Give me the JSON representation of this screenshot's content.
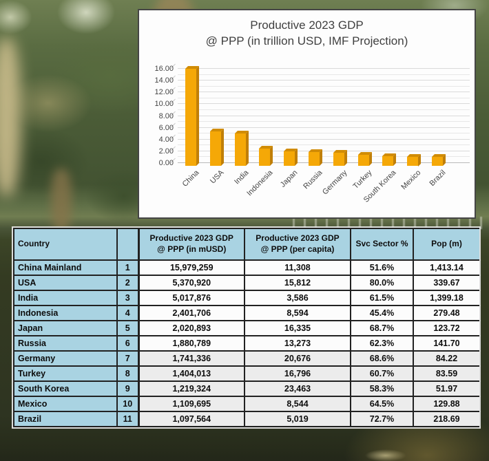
{
  "chart": {
    "title_line1": "Productive 2023 GDP",
    "title_line2": "@ PPP (in trillion USD, IMF Projection)",
    "y_ticks": [
      "0.00",
      "2.00",
      "4.00",
      "6.00",
      "8.00",
      "10.00",
      "12.00",
      "14.00",
      "16.00"
    ],
    "bar_front_color": "#f5a807",
    "bar_side_color": "#c07f08",
    "bar_top_color": "#d18c05"
  },
  "chart_data": [
    {
      "type": "bar",
      "title": "Productive 2023 GDP @ PPP (in trillion USD, IMF Projection)",
      "categories": [
        "China",
        "USA",
        "India",
        "Indonesia",
        "Japan",
        "Russia",
        "Germany",
        "Turkey",
        "South Korea",
        "Mexico",
        "Brazil"
      ],
      "values": [
        15.98,
        5.37,
        5.02,
        2.4,
        2.02,
        1.88,
        1.74,
        1.4,
        1.22,
        1.11,
        1.1
      ],
      "xlabel": "",
      "ylabel": "",
      "ylim": [
        0,
        16
      ],
      "y_tick_interval": 2,
      "gridline_interval": 1,
      "grid": true,
      "legend": false,
      "style": "3d-gold-bars"
    },
    {
      "type": "table",
      "columns": [
        "Country",
        "Rank",
        "Productive 2023 GDP @ PPP (in mUSD)",
        "Productive 2023 GDP @ PPP (per capita)",
        "Svc Sector %",
        "Pop (m)"
      ],
      "rows": [
        [
          "China Mainland",
          "1",
          "15,979,259",
          "11,308",
          "51.6%",
          "1,413.14"
        ],
        [
          "USA",
          "2",
          "5,370,920",
          "15,812",
          "80.0%",
          "339.67"
        ],
        [
          "India",
          "3",
          "5,017,876",
          "3,586",
          "61.5%",
          "1,399.18"
        ],
        [
          "Indonesia",
          "4",
          "2,401,706",
          "8,594",
          "45.4%",
          "279.48"
        ],
        [
          "Japan",
          "5",
          "2,020,893",
          "16,335",
          "68.7%",
          "123.72"
        ],
        [
          "Russia",
          "6",
          "1,880,789",
          "13,273",
          "62.3%",
          "141.70"
        ],
        [
          "Germany",
          "7",
          "1,741,336",
          "20,676",
          "68.6%",
          "84.22"
        ],
        [
          "Turkey",
          "8",
          "1,404,013",
          "16,796",
          "60.7%",
          "83.59"
        ],
        [
          "South Korea",
          "9",
          "1,219,324",
          "23,463",
          "58.3%",
          "51.97"
        ],
        [
          "Mexico",
          "10",
          "1,109,695",
          "8,544",
          "64.5%",
          "129.88"
        ],
        [
          "Brazil",
          "11",
          "1,097,564",
          "5,019",
          "72.7%",
          "218.69"
        ]
      ]
    }
  ],
  "table": {
    "headers": [
      "Country",
      "",
      "Productive 2023 GDP\n@ PPP (in mUSD)",
      "Productive 2023 GDP\n@ PPP (per capita)",
      "Svc Sector %",
      "Pop (m)"
    ],
    "rows": [
      {
        "country": "China Mainland",
        "rank": "1",
        "gdp_musd": "15,979,259",
        "gdp_per_capita": "11,308",
        "svc_sector": "51.6%",
        "pop_m": "1,413.14"
      },
      {
        "country": "USA",
        "rank": "2",
        "gdp_musd": "5,370,920",
        "gdp_per_capita": "15,812",
        "svc_sector": "80.0%",
        "pop_m": "339.67"
      },
      {
        "country": "India",
        "rank": "3",
        "gdp_musd": "5,017,876",
        "gdp_per_capita": "3,586",
        "svc_sector": "61.5%",
        "pop_m": "1,399.18"
      },
      {
        "country": "Indonesia",
        "rank": "4",
        "gdp_musd": "2,401,706",
        "gdp_per_capita": "8,594",
        "svc_sector": "45.4%",
        "pop_m": "279.48"
      },
      {
        "country": "Japan",
        "rank": "5",
        "gdp_musd": "2,020,893",
        "gdp_per_capita": "16,335",
        "svc_sector": "68.7%",
        "pop_m": "123.72"
      },
      {
        "country": "Russia",
        "rank": "6",
        "gdp_musd": "1,880,789",
        "gdp_per_capita": "13,273",
        "svc_sector": "62.3%",
        "pop_m": "141.70"
      },
      {
        "country": "Germany",
        "rank": "7",
        "gdp_musd": "1,741,336",
        "gdp_per_capita": "20,676",
        "svc_sector": "68.6%",
        "pop_m": "84.22"
      },
      {
        "country": "Turkey",
        "rank": "8",
        "gdp_musd": "1,404,013",
        "gdp_per_capita": "16,796",
        "svc_sector": "60.7%",
        "pop_m": "83.59"
      },
      {
        "country": "South Korea",
        "rank": "9",
        "gdp_musd": "1,219,324",
        "gdp_per_capita": "23,463",
        "svc_sector": "58.3%",
        "pop_m": "51.97"
      },
      {
        "country": "Mexico",
        "rank": "10",
        "gdp_musd": "1,109,695",
        "gdp_per_capita": "8,544",
        "svc_sector": "64.5%",
        "pop_m": "129.88"
      },
      {
        "country": "Brazil",
        "rank": "11",
        "gdp_musd": "1,097,564",
        "gdp_per_capita": "5,019",
        "svc_sector": "72.7%",
        "pop_m": "218.69"
      }
    ]
  },
  "background": {
    "description_colors": {
      "foliage": "#4b5c37",
      "water": "#2e3421",
      "trunk": "#8a7448",
      "light_patch": "#d2c291"
    }
  }
}
